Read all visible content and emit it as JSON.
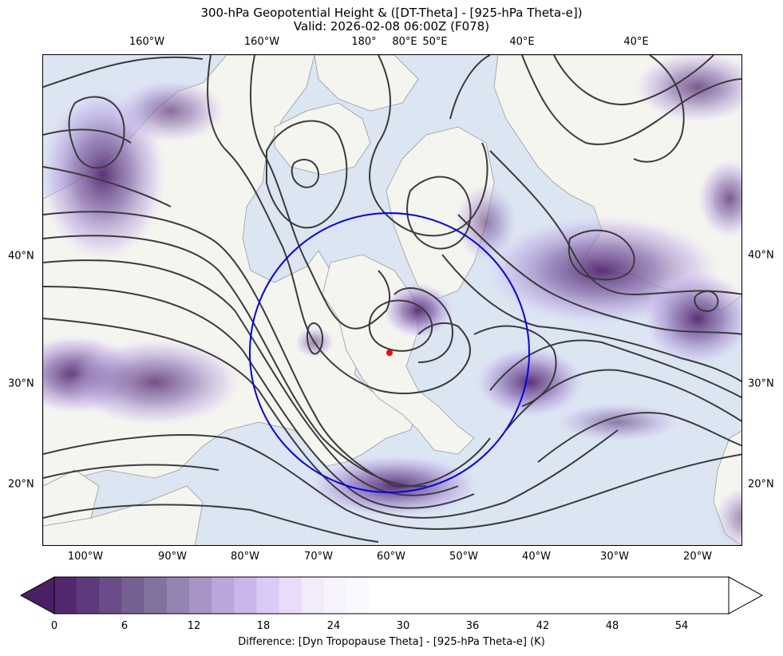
{
  "title": {
    "line1": "300-hPa Geopotential Height & ([DT-Theta] - [925-hPa Theta-e])",
    "line2": "Valid: 2026-02-08 06:00Z (F078)"
  },
  "top_lon_labels": [
    "160°W",
    "160°W",
    "180°",
    "80°E",
    "50°E",
    "40°E",
    "40°E"
  ],
  "bottom_lon_labels": [
    "100°W",
    "90°W",
    "80°W",
    "70°W",
    "60°W",
    "50°W",
    "40°W",
    "30°W",
    "20°W"
  ],
  "left_lat_labels": [
    "40°N",
    "30°N",
    "20°N"
  ],
  "right_lat_labels": [
    "40°N",
    "30°N",
    "20°N"
  ],
  "colorbar": {
    "ticks": [
      "0",
      "6",
      "12",
      "18",
      "24",
      "30",
      "36",
      "42",
      "48",
      "54"
    ],
    "label": "Difference: [Dyn Tropopause Theta] - [925-hPa Theta-e] (K)",
    "level_colors": [
      "#54286f",
      "#5e3a7c",
      "#6a4d88",
      "#766093",
      "#84729e",
      "#9584b2",
      "#a894c7",
      "#bba5db",
      "#cbb5ea",
      "#dbc9f6",
      "#e8dcfa",
      "#f1ebfc",
      "#f7f4fe",
      "#fbf9ff"
    ],
    "extend_min_color": "#4b1f66",
    "range": [
      0,
      60
    ],
    "step": 2
  },
  "map_colors": {
    "ocean": "#dbe6f2",
    "land": "#f5f5ef",
    "contour": "#3b3b3b",
    "circle": "#0000ff",
    "marker": "#ff0000"
  }
}
